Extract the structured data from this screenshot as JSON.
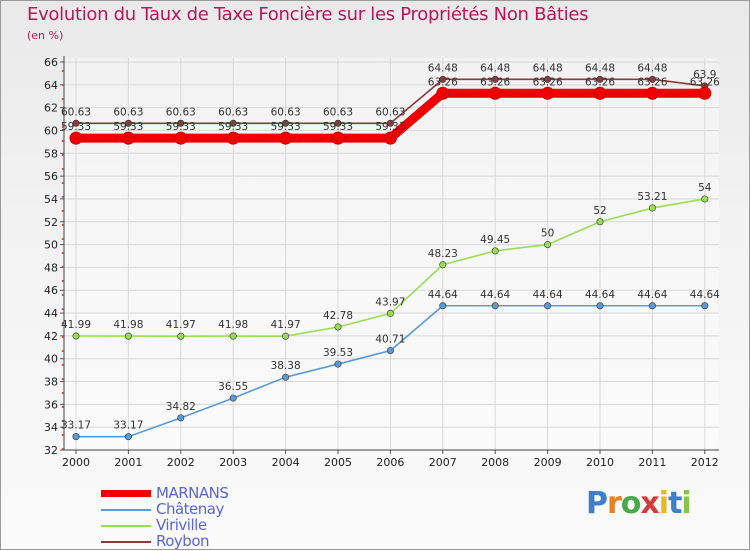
{
  "chart_data": {
    "type": "line",
    "title": "Evolution du Taux de Taxe Foncière sur les Propriétés Non Bâties",
    "subtitle": "(en %)",
    "xlabel": "",
    "ylabel": "(en %)",
    "categories": [
      "2000",
      "2001",
      "2002",
      "2003",
      "2004",
      "2005",
      "2006",
      "2007",
      "2008",
      "2009",
      "2010",
      "2011",
      "2012"
    ],
    "ylim": [
      32,
      66
    ],
    "ytick_step": 2,
    "series": [
      {
        "name": "MARNANS",
        "color": "#ee0000",
        "values": [
          59.33,
          59.33,
          59.33,
          59.33,
          59.33,
          59.33,
          59.33,
          63.26,
          63.26,
          63.26,
          63.26,
          63.26,
          63.26
        ],
        "labels": [
          "59.33",
          "59.33",
          "59.33",
          "59.33",
          "59.33",
          "59.33",
          "59.33",
          "63.26",
          "63.26",
          "63.26",
          "63.26",
          "63.26",
          "63.26"
        ]
      },
      {
        "name": "Châtenay",
        "color": "#5b9bd5",
        "values": [
          33.17,
          33.17,
          34.82,
          36.55,
          38.38,
          39.53,
          40.71,
          44.64,
          44.64,
          44.64,
          44.64,
          44.64,
          44.64
        ],
        "labels": [
          "33.17",
          "33.17",
          "34.82",
          "36.55",
          "38.38",
          "39.53",
          "40.71",
          "44.64",
          "44.64",
          "44.64",
          "44.64",
          "44.64",
          "44.64"
        ]
      },
      {
        "name": "Viriville",
        "color": "#99dd55",
        "values": [
          41.99,
          41.98,
          41.97,
          41.98,
          41.97,
          42.78,
          43.97,
          48.23,
          49.45,
          50,
          52,
          53.21,
          54
        ],
        "labels": [
          "41.99",
          "41.98",
          "41.97",
          "41.98",
          "41.97",
          "42.78",
          "43.97",
          "48.23",
          "49.45",
          "50",
          "52",
          "53.21",
          "54"
        ]
      },
      {
        "name": "Roybon",
        "color": "#8b3a3a",
        "values": [
          60.63,
          60.63,
          60.63,
          60.63,
          60.63,
          60.63,
          60.63,
          64.48,
          64.48,
          64.48,
          64.48,
          64.48,
          63.9
        ],
        "labels": [
          "60.63",
          "60.63",
          "60.63",
          "60.63",
          "60.63",
          "60.63",
          "60.63",
          "64.48",
          "64.48",
          "64.48",
          "64.48",
          "64.48",
          "63.9"
        ]
      }
    ],
    "legend": {
      "position": "bottom-left"
    }
  },
  "logo": {
    "text": "Proxiti",
    "letters": [
      "P",
      "r",
      "o",
      "x",
      "i",
      "t",
      "i"
    ],
    "colors": [
      "#3d7fc9",
      "#e8801f",
      "#4aa84a",
      "#d63a3a",
      "#e8b81f",
      "#3d7fc9",
      "#8bc34a"
    ]
  }
}
